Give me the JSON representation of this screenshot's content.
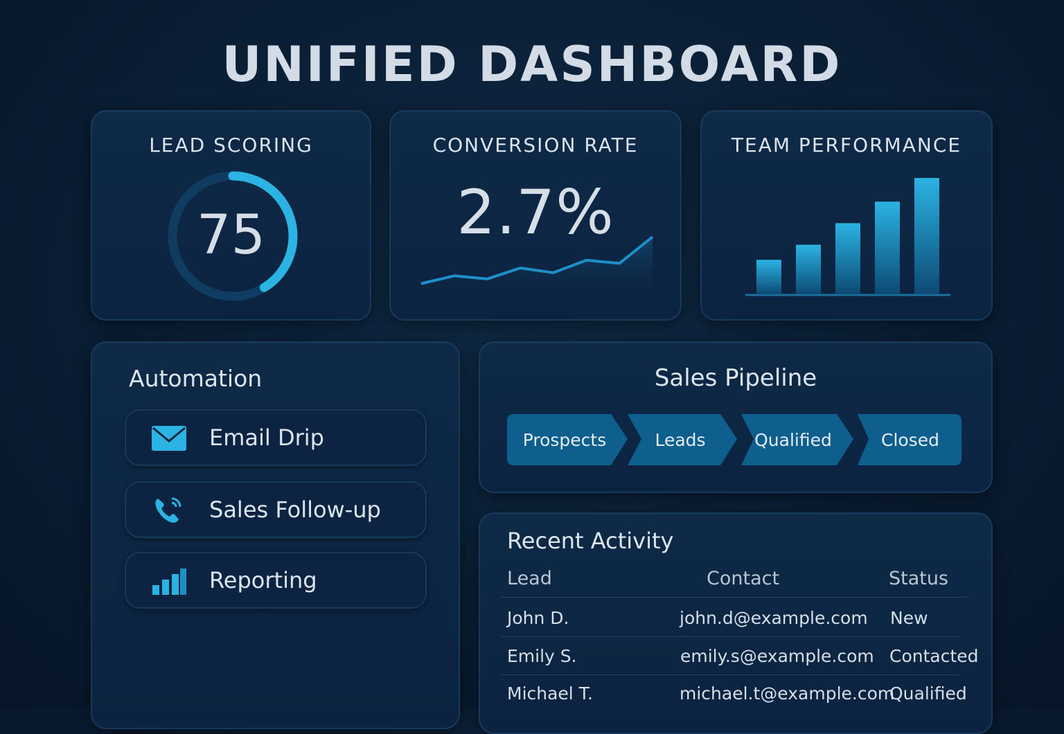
{
  "title": "UNIFIED DASHBOARD",
  "lead_scoring": {
    "label": "LEAD SCORING",
    "score": "75",
    "score_value": 75,
    "score_max": 100
  },
  "conversion": {
    "label": "CONVERSION RATE",
    "value": "2.7%",
    "trend": [
      2,
      3,
      2.6,
      4,
      3.4,
      5,
      4.6,
      8
    ]
  },
  "team": {
    "label": "TEAM PERFORMANCE",
    "bars": [
      1.6,
      2.3,
      3.3,
      4.3,
      5.4
    ]
  },
  "automation": {
    "title": "Automation",
    "items": [
      {
        "label": "Email Drip",
        "icon": "envelope-icon"
      },
      {
        "label": "Sales Follow-up",
        "icon": "phone-icon"
      },
      {
        "label": "Reporting",
        "icon": "bar-chart-icon"
      }
    ]
  },
  "pipeline": {
    "title": "Sales Pipeline",
    "stages": [
      "Prospects",
      "Leads",
      "Qualified",
      "Closed"
    ]
  },
  "recent": {
    "title": "Recent Activity",
    "columns": [
      "Lead",
      "Contact",
      "Status"
    ],
    "rows": [
      {
        "lead": "John D.",
        "contact": "john.d@example.com",
        "status": "New"
      },
      {
        "lead": "Emily S.",
        "contact": "emily.s@example.com",
        "status": "Contacted"
      },
      {
        "lead": "Michael T.",
        "contact": "michael.t@example.com",
        "status": "Qualified"
      }
    ]
  },
  "colors": {
    "accent": "#2bb3e3",
    "stage": "#0e5f8e",
    "card": "#0e2a47",
    "background": "#0a1e34"
  }
}
